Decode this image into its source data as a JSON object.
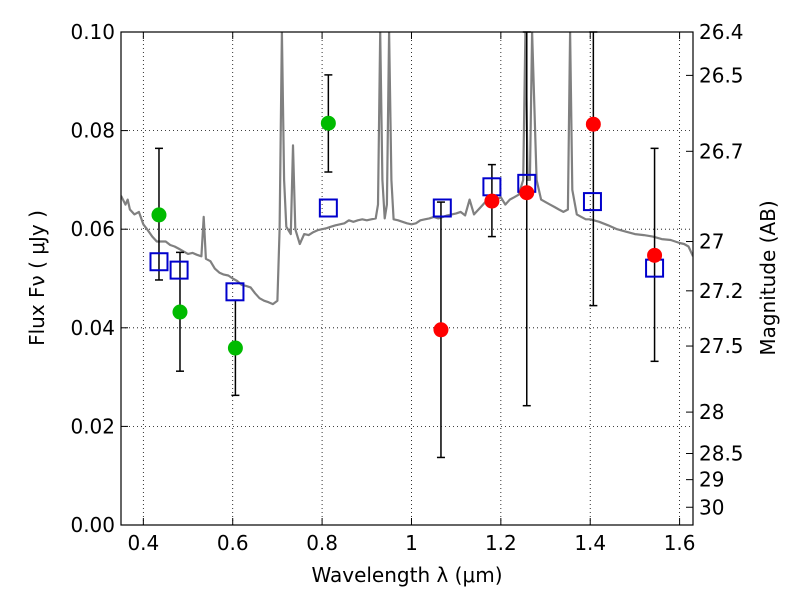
{
  "chart_data": {
    "type": "scatter",
    "xlabel": "Wavelength  λ (μm)",
    "ylabel": "Flux  Fν  ( μJy )",
    "ylabel_right": "Magnitude (AB)",
    "xlim": [
      0.35,
      1.63
    ],
    "ylim": [
      0.0,
      0.1
    ],
    "grid": true,
    "x_ticks": [
      0.4,
      0.6,
      0.8,
      1.0,
      1.2,
      1.4,
      1.6
    ],
    "x_tick_labels": [
      "0.4",
      "0.6",
      "0.8",
      "1",
      "1.2",
      "1.4",
      "1.6"
    ],
    "y_ticks": [
      0.0,
      0.02,
      0.04,
      0.06,
      0.08,
      0.1
    ],
    "y_tick_labels": [
      "0.00",
      "0.02",
      "0.04",
      "0.06",
      "0.08",
      "0.10"
    ],
    "right_ticks": [
      {
        "flux": 0.1,
        "label": "26.4"
      },
      {
        "flux": 0.0912,
        "label": "26.5"
      },
      {
        "flux": 0.0758,
        "label": "26.7"
      },
      {
        "flux": 0.0575,
        "label": "27"
      },
      {
        "flux": 0.0475,
        "label": "27.2"
      },
      {
        "flux": 0.0363,
        "label": "27.5"
      },
      {
        "flux": 0.0229,
        "label": "28"
      },
      {
        "flux": 0.0145,
        "label": "28.5"
      },
      {
        "flux": 0.0092,
        "label": "29"
      },
      {
        "flux": 0.0036,
        "label": "30"
      }
    ],
    "series": [
      {
        "color": "#00bb00",
        "marker": "circle",
        "points": [
          {
            "x": 0.435,
            "y": 0.0629,
            "err_lo": 0.0497,
            "err_hi": 0.0764
          },
          {
            "x": 0.482,
            "y": 0.0432,
            "err_lo": 0.0312,
            "err_hi": 0.0553
          },
          {
            "x": 0.606,
            "y": 0.0359,
            "err_lo": 0.0263,
            "err_hi": 0.0456
          },
          {
            "x": 0.814,
            "y": 0.0815,
            "err_lo": 0.0716,
            "err_hi": 0.0913
          }
        ]
      },
      {
        "color": "#ff0000",
        "marker": "circle",
        "points": [
          {
            "x": 1.066,
            "y": 0.0396,
            "err_lo": 0.0137,
            "err_hi": 0.0655
          },
          {
            "x": 1.18,
            "y": 0.0657,
            "err_lo": 0.0585,
            "err_hi": 0.0731
          },
          {
            "x": 1.258,
            "y": 0.0674,
            "err_lo": 0.0242,
            "err_hi": 0.1
          },
          {
            "x": 1.407,
            "y": 0.0813,
            "err_lo": 0.0445,
            "err_hi": 0.1
          },
          {
            "x": 1.544,
            "y": 0.0547,
            "err_lo": 0.0332,
            "err_hi": 0.0764
          }
        ]
      },
      {
        "color": "#0000cc",
        "marker": "open-square",
        "points": [
          {
            "x": 0.435,
            "y": 0.0534
          },
          {
            "x": 0.48,
            "y": 0.0517
          },
          {
            "x": 0.605,
            "y": 0.0473
          },
          {
            "x": 0.814,
            "y": 0.0643
          },
          {
            "x": 1.069,
            "y": 0.0643
          },
          {
            "x": 1.18,
            "y": 0.0686
          },
          {
            "x": 1.258,
            "y": 0.0693
          },
          {
            "x": 1.405,
            "y": 0.0656
          },
          {
            "x": 1.544,
            "y": 0.0521
          }
        ]
      }
    ],
    "template_color": "#808080",
    "template_sed": [
      [
        0.35,
        0.0668
      ],
      [
        0.36,
        0.065
      ],
      [
        0.365,
        0.066
      ],
      [
        0.37,
        0.064
      ],
      [
        0.38,
        0.063
      ],
      [
        0.39,
        0.0635
      ],
      [
        0.4,
        0.061
      ],
      [
        0.41,
        0.0598
      ],
      [
        0.42,
        0.0585
      ],
      [
        0.43,
        0.0575
      ],
      [
        0.44,
        0.0575
      ],
      [
        0.45,
        0.0575
      ],
      [
        0.46,
        0.0568
      ],
      [
        0.47,
        0.0565
      ],
      [
        0.48,
        0.056
      ],
      [
        0.49,
        0.0555
      ],
      [
        0.5,
        0.055
      ],
      [
        0.51,
        0.0552
      ],
      [
        0.52,
        0.0548
      ],
      [
        0.53,
        0.0545
      ],
      [
        0.535,
        0.0625
      ],
      [
        0.54,
        0.054
      ],
      [
        0.55,
        0.0535
      ],
      [
        0.56,
        0.052
      ],
      [
        0.57,
        0.0512
      ],
      [
        0.58,
        0.0508
      ],
      [
        0.59,
        0.0506
      ],
      [
        0.6,
        0.05
      ],
      [
        0.61,
        0.0495
      ],
      [
        0.62,
        0.0487
      ],
      [
        0.63,
        0.0485
      ],
      [
        0.64,
        0.0482
      ],
      [
        0.65,
        0.047
      ],
      [
        0.66,
        0.046
      ],
      [
        0.67,
        0.0455
      ],
      [
        0.68,
        0.0452
      ],
      [
        0.69,
        0.0448
      ],
      [
        0.7,
        0.0455
      ],
      [
        0.705,
        0.06
      ],
      [
        0.71,
        0.1
      ],
      [
        0.715,
        0.07
      ],
      [
        0.72,
        0.0605
      ],
      [
        0.73,
        0.059
      ],
      [
        0.735,
        0.077
      ],
      [
        0.74,
        0.06
      ],
      [
        0.75,
        0.057
      ],
      [
        0.76,
        0.059
      ],
      [
        0.77,
        0.0588
      ],
      [
        0.78,
        0.0594
      ],
      [
        0.79,
        0.0598
      ],
      [
        0.8,
        0.06
      ],
      [
        0.81,
        0.0602
      ],
      [
        0.82,
        0.0605
      ],
      [
        0.83,
        0.0608
      ],
      [
        0.84,
        0.061
      ],
      [
        0.85,
        0.0612
      ],
      [
        0.86,
        0.0618
      ],
      [
        0.87,
        0.0615
      ],
      [
        0.88,
        0.0618
      ],
      [
        0.89,
        0.062
      ],
      [
        0.9,
        0.0618
      ],
      [
        0.91,
        0.062
      ],
      [
        0.92,
        0.0622
      ],
      [
        0.925,
        0.065
      ],
      [
        0.93,
        0.1
      ],
      [
        0.935,
        0.07
      ],
      [
        0.94,
        0.0622
      ],
      [
        0.945,
        0.065
      ],
      [
        0.95,
        0.1
      ],
      [
        0.955,
        0.07
      ],
      [
        0.96,
        0.062
      ],
      [
        0.97,
        0.0618
      ],
      [
        0.98,
        0.0615
      ],
      [
        0.99,
        0.0612
      ],
      [
        1.0,
        0.061
      ],
      [
        1.01,
        0.0612
      ],
      [
        1.02,
        0.0618
      ],
      [
        1.03,
        0.062
      ],
      [
        1.04,
        0.0622
      ],
      [
        1.05,
        0.0625
      ],
      [
        1.06,
        0.0622
      ],
      [
        1.07,
        0.0625
      ],
      [
        1.08,
        0.0628
      ],
      [
        1.09,
        0.063
      ],
      [
        1.1,
        0.0632
      ],
      [
        1.11,
        0.0635
      ],
      [
        1.12,
        0.0628
      ],
      [
        1.13,
        0.066
      ],
      [
        1.14,
        0.063
      ],
      [
        1.15,
        0.064
      ],
      [
        1.16,
        0.065
      ],
      [
        1.17,
        0.066
      ],
      [
        1.18,
        0.067
      ],
      [
        1.19,
        0.066
      ],
      [
        1.2,
        0.0665
      ],
      [
        1.21,
        0.065
      ],
      [
        1.22,
        0.066
      ],
      [
        1.23,
        0.0665
      ],
      [
        1.24,
        0.067
      ],
      [
        1.25,
        0.07
      ],
      [
        1.255,
        0.1
      ],
      [
        1.26,
        0.07
      ],
      [
        1.265,
        0.07
      ],
      [
        1.27,
        0.1
      ],
      [
        1.28,
        0.07
      ],
      [
        1.29,
        0.066
      ],
      [
        1.3,
        0.0655
      ],
      [
        1.31,
        0.065
      ],
      [
        1.32,
        0.0645
      ],
      [
        1.33,
        0.064
      ],
      [
        1.34,
        0.0635
      ],
      [
        1.35,
        0.064
      ],
      [
        1.355,
        0.1
      ],
      [
        1.36,
        0.068
      ],
      [
        1.37,
        0.063
      ],
      [
        1.38,
        0.0625
      ],
      [
        1.39,
        0.062
      ],
      [
        1.4,
        0.062
      ],
      [
        1.42,
        0.0615
      ],
      [
        1.44,
        0.0608
      ],
      [
        1.46,
        0.06
      ],
      [
        1.48,
        0.0595
      ],
      [
        1.5,
        0.059
      ],
      [
        1.52,
        0.0588
      ],
      [
        1.54,
        0.0585
      ],
      [
        1.56,
        0.058
      ],
      [
        1.58,
        0.0578
      ],
      [
        1.6,
        0.0572
      ],
      [
        1.61,
        0.057
      ],
      [
        1.62,
        0.0565
      ],
      [
        1.63,
        0.0545
      ]
    ]
  }
}
